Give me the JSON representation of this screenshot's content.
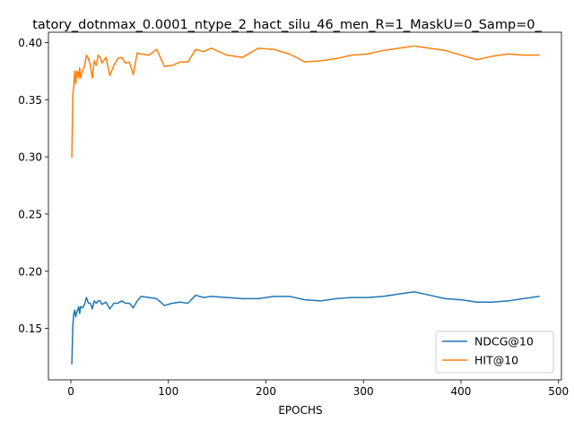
{
  "chart_data": {
    "type": "line",
    "title": "tatory_dotnmax_0.0001_ntype_2_hact_silu_46_men_R=1_MaskU=0_Samp=0_",
    "xlabel": "EPOCHS",
    "ylabel": "",
    "xlim": [
      -23,
      503
    ],
    "ylim": [
      0.105,
      0.409
    ],
    "xticks": [
      0,
      100,
      200,
      300,
      400,
      500
    ],
    "yticks": [
      0.15,
      0.2,
      0.25,
      0.3,
      0.35,
      0.4
    ],
    "xtick_labels": [
      "0",
      "100",
      "200",
      "300",
      "400",
      "500"
    ],
    "ytick_labels": [
      "0.15",
      "0.20",
      "0.25",
      "0.30",
      "0.35",
      "0.40"
    ],
    "grid": false,
    "legend_position": "lower-right",
    "series": [
      {
        "name": "NDCG@10",
        "color": "#1f77b4",
        "points": [
          [
            1,
            0.119
          ],
          [
            2,
            0.152
          ],
          [
            3,
            0.163
          ],
          [
            4,
            0.166
          ],
          [
            5,
            0.16
          ],
          [
            6,
            0.164
          ],
          [
            7,
            0.166
          ],
          [
            8,
            0.169
          ],
          [
            9,
            0.163
          ],
          [
            10,
            0.169
          ],
          [
            12,
            0.168
          ],
          [
            14,
            0.171
          ],
          [
            16,
            0.177
          ],
          [
            18,
            0.172
          ],
          [
            20,
            0.172
          ],
          [
            22,
            0.167
          ],
          [
            24,
            0.174
          ],
          [
            26,
            0.172
          ],
          [
            28,
            0.174
          ],
          [
            30,
            0.174
          ],
          [
            32,
            0.171
          ],
          [
            36,
            0.173
          ],
          [
            40,
            0.167
          ],
          [
            44,
            0.172
          ],
          [
            48,
            0.172
          ],
          [
            52,
            0.174
          ],
          [
            56,
            0.172
          ],
          [
            60,
            0.172
          ],
          [
            64,
            0.168
          ],
          [
            68,
            0.174
          ],
          [
            72,
            0.178
          ],
          [
            80,
            0.177
          ],
          [
            88,
            0.176
          ],
          [
            96,
            0.17
          ],
          [
            104,
            0.172
          ],
          [
            112,
            0.173
          ],
          [
            120,
            0.172
          ],
          [
            128,
            0.179
          ],
          [
            136,
            0.177
          ],
          [
            144,
            0.178
          ],
          [
            160,
            0.177
          ],
          [
            176,
            0.176
          ],
          [
            192,
            0.176
          ],
          [
            208,
            0.178
          ],
          [
            224,
            0.178
          ],
          [
            240,
            0.175
          ],
          [
            256,
            0.174
          ],
          [
            272,
            0.176
          ],
          [
            288,
            0.177
          ],
          [
            304,
            0.177
          ],
          [
            320,
            0.178
          ],
          [
            336,
            0.18
          ],
          [
            352,
            0.182
          ],
          [
            368,
            0.179
          ],
          [
            384,
            0.176
          ],
          [
            400,
            0.175
          ],
          [
            416,
            0.173
          ],
          [
            432,
            0.173
          ],
          [
            448,
            0.174
          ],
          [
            464,
            0.176
          ],
          [
            480,
            0.178
          ]
        ]
      },
      {
        "name": "HIT@10",
        "color": "#ff7f0e",
        "points": [
          [
            1,
            0.3
          ],
          [
            2,
            0.354
          ],
          [
            3,
            0.362
          ],
          [
            4,
            0.375
          ],
          [
            5,
            0.364
          ],
          [
            6,
            0.375
          ],
          [
            7,
            0.374
          ],
          [
            8,
            0.369
          ],
          [
            9,
            0.378
          ],
          [
            10,
            0.369
          ],
          [
            12,
            0.376
          ],
          [
            14,
            0.379
          ],
          [
            16,
            0.389
          ],
          [
            18,
            0.386
          ],
          [
            20,
            0.38
          ],
          [
            22,
            0.369
          ],
          [
            24,
            0.384
          ],
          [
            26,
            0.38
          ],
          [
            28,
            0.389
          ],
          [
            30,
            0.387
          ],
          [
            32,
            0.382
          ],
          [
            36,
            0.387
          ],
          [
            40,
            0.371
          ],
          [
            44,
            0.38
          ],
          [
            48,
            0.386
          ],
          [
            52,
            0.387
          ],
          [
            56,
            0.382
          ],
          [
            60,
            0.383
          ],
          [
            64,
            0.372
          ],
          [
            68,
            0.391
          ],
          [
            72,
            0.39
          ],
          [
            80,
            0.389
          ],
          [
            88,
            0.394
          ],
          [
            96,
            0.379
          ],
          [
            104,
            0.38
          ],
          [
            112,
            0.383
          ],
          [
            120,
            0.383
          ],
          [
            128,
            0.394
          ],
          [
            136,
            0.392
          ],
          [
            144,
            0.395
          ],
          [
            160,
            0.389
          ],
          [
            176,
            0.387
          ],
          [
            192,
            0.395
          ],
          [
            208,
            0.394
          ],
          [
            224,
            0.39
          ],
          [
            240,
            0.383
          ],
          [
            256,
            0.384
          ],
          [
            272,
            0.386
          ],
          [
            288,
            0.389
          ],
          [
            304,
            0.39
          ],
          [
            320,
            0.393
          ],
          [
            336,
            0.395
          ],
          [
            352,
            0.397
          ],
          [
            368,
            0.395
          ],
          [
            384,
            0.393
          ],
          [
            400,
            0.389
          ],
          [
            416,
            0.385
          ],
          [
            432,
            0.388
          ],
          [
            448,
            0.39
          ],
          [
            464,
            0.389
          ],
          [
            480,
            0.389
          ]
        ]
      }
    ]
  }
}
